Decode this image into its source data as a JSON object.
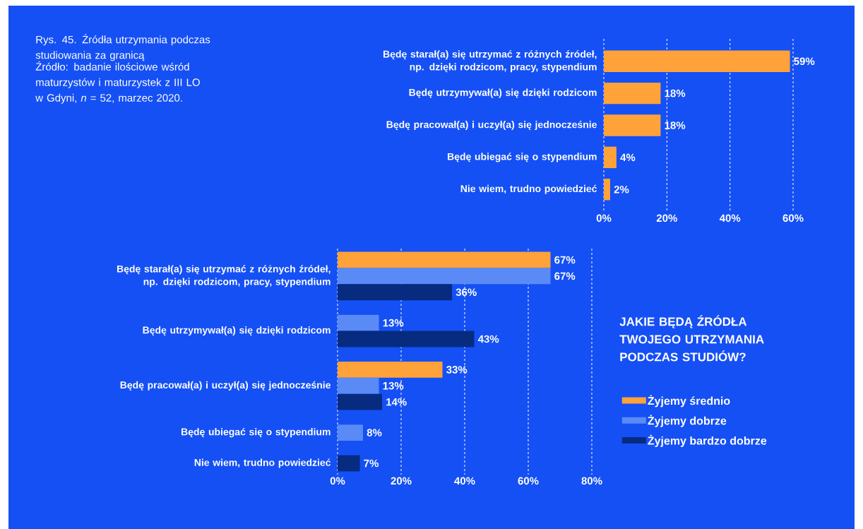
{
  "chart_data": [
    {
      "type": "other",
      "title": "Rys. 45. Źródła utrzymania podczas studiowania za granicą",
      "annotations": [
        "Źródło: badanie ilościowe wśród maturzystów i maturzystek z III LO w Gdyni, *n* = 52, marzec 2020."
      ]
    },
    {
      "type": "bar",
      "orientation": "horizontal",
      "categories": [
        "Będę starał(a) się utrzymać z różnych źródeł, np. dzięki rodzicom, pracy, stypendium",
        "Będę utrzymywał(a) się dzięki rodzicom",
        "Będę pracował(a) i uczył(a) się jednocześnie",
        "Będę ubiegać się o stypendium",
        "Nie wiem, trudno powiedzieć"
      ],
      "values": [
        59,
        18,
        18,
        4,
        2
      ],
      "value_labels": [
        "59%",
        "18%",
        "18%",
        "4%",
        "2%"
      ],
      "color": "#ffa23a",
      "xlim": [
        0,
        60
      ],
      "xticks": [
        {
          "value": 0,
          "label": "0%"
        },
        {
          "value": 20,
          "label": "20%"
        },
        {
          "value": 40,
          "label": "40%"
        },
        {
          "value": 60,
          "label": "60%"
        }
      ],
      "grid": "x"
    },
    {
      "type": "bar",
      "orientation": "horizontal",
      "categories": [
        "Będę starał(a) się utrzymać z różnych źródeł, np. dzięki rodzicom, pracy, stypendium",
        "Będę utrzymywał(a) się dzięki rodzicom",
        "Będę pracował(a) i uczył(a) się jednocześnie",
        "Będę ubiegać się o stypendium",
        "Nie wiem, trudno powiedzieć"
      ],
      "legend_title": "JAKIE BĘDĄ ŹRÓDŁA TWOJEGO UTRZYMANIA PODCZAS STUDIÓW?",
      "legend": "right",
      "series": [
        {
          "name": "Żyjemy średnio",
          "color": "#ffa23a",
          "values": [
            67,
            null,
            33,
            null,
            null
          ],
          "value_labels": [
            "67%",
            null,
            "33%",
            null,
            null
          ]
        },
        {
          "name": "Żyjemy dobrze",
          "color": "#5a8af5",
          "values": [
            67,
            13,
            13,
            8,
            null
          ],
          "value_labels": [
            "67%",
            "13%",
            "13%",
            "8%",
            null
          ]
        },
        {
          "name": "Żyjemy bardzo dobrze",
          "color": "#062b7f",
          "values": [
            36,
            43,
            14,
            null,
            7
          ],
          "value_labels": [
            "36%",
            "43%",
            "14%",
            null,
            "7%"
          ]
        }
      ],
      "xlim": [
        0,
        80
      ],
      "xticks": [
        {
          "value": 0,
          "label": "0%"
        },
        {
          "value": 20,
          "label": "20%"
        },
        {
          "value": 40,
          "label": "40%"
        },
        {
          "value": 60,
          "label": "60%"
        },
        {
          "value": 80,
          "label": "80%"
        }
      ],
      "grid": "x"
    }
  ]
}
